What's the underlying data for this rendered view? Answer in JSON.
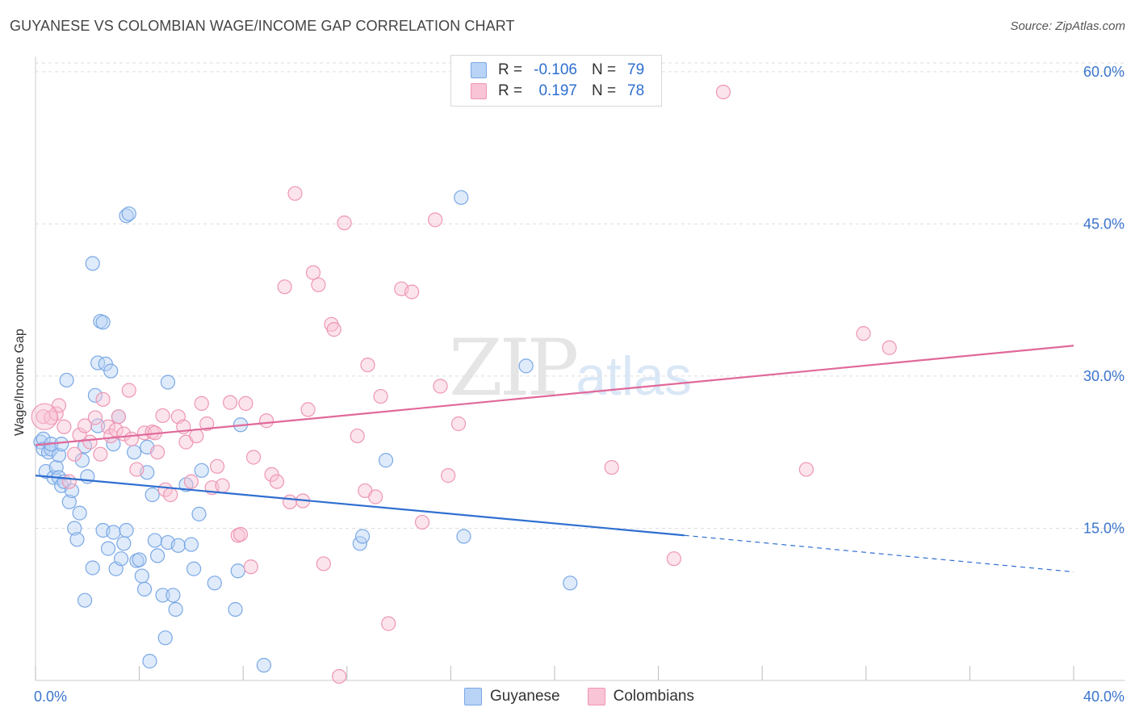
{
  "title": "GUYANESE VS COLOMBIAN WAGE/INCOME GAP CORRELATION CHART",
  "source": "Source: ZipAtlas.com",
  "watermark": {
    "zip": "ZIP",
    "atlas": "atlas"
  },
  "legend": {
    "rows": [
      {
        "r_label": "R =",
        "r_value": "-0.106",
        "n_label": "N =",
        "n_value": "79"
      },
      {
        "r_label": "R =",
        "r_value": "0.197",
        "n_label": "N =",
        "n_value": "78"
      }
    ]
  },
  "bottom_legend": [
    "Guyanese",
    "Colombians"
  ],
  "colors": {
    "blue_fill": "#b8d3f5",
    "blue_stroke": "#7aa8e6",
    "blue_line": "#2f6fd0",
    "pink_fill": "#f9c4d5",
    "pink_stroke": "#ee96b3",
    "pink_line": "#e0699a",
    "tick_label": "#3b74cc",
    "grid": "#dddddd"
  },
  "chart_data": {
    "type": "scatter",
    "title": "GUYANESE VS COLOMBIAN WAGE/INCOME GAP CORRELATION CHART",
    "xlabel": "",
    "ylabel": "Wage/Income Gap",
    "xlim": [
      0,
      40
    ],
    "ylim": [
      0,
      61.5
    ],
    "x_tick_labels": [
      "0.0%",
      "40.0%"
    ],
    "y_ticks": [
      15,
      30,
      45,
      60
    ],
    "y_tick_labels": [
      "15.0%",
      "30.0%",
      "45.0%",
      "60.0%"
    ],
    "series": [
      {
        "name": "Guyanese",
        "R": -0.106,
        "N": 79,
        "trend": {
          "x0": 0,
          "y0": 20.2,
          "x1": 25,
          "y1": 14.3,
          "dashed_to_x": 40,
          "dashed_to_y": 10.7
        },
        "points": [
          [
            0.2,
            23.5
          ],
          [
            0.3,
            23.8
          ],
          [
            0.3,
            22.8
          ],
          [
            0.4,
            20.6
          ],
          [
            0.5,
            22.5
          ],
          [
            0.6,
            22.8
          ],
          [
            0.6,
            23.3
          ],
          [
            0.7,
            20.0
          ],
          [
            0.8,
            21.0
          ],
          [
            0.9,
            20.0
          ],
          [
            0.9,
            22.2
          ],
          [
            1.0,
            23.3
          ],
          [
            1.0,
            19.2
          ],
          [
            1.1,
            19.6
          ],
          [
            1.2,
            29.6
          ],
          [
            1.3,
            17.6
          ],
          [
            1.4,
            18.7
          ],
          [
            1.5,
            15.0
          ],
          [
            1.6,
            13.9
          ],
          [
            1.7,
            16.5
          ],
          [
            1.8,
            21.7
          ],
          [
            1.9,
            23.1
          ],
          [
            1.9,
            7.9
          ],
          [
            2.0,
            20.1
          ],
          [
            2.2,
            11.1
          ],
          [
            2.2,
            41.1
          ],
          [
            2.3,
            28.1
          ],
          [
            2.4,
            25.1
          ],
          [
            2.4,
            31.3
          ],
          [
            2.5,
            35.4
          ],
          [
            2.6,
            35.3
          ],
          [
            2.6,
            14.8
          ],
          [
            2.7,
            31.2
          ],
          [
            2.8,
            13.0
          ],
          [
            2.9,
            30.5
          ],
          [
            3.0,
            14.6
          ],
          [
            3.0,
            23.3
          ],
          [
            3.1,
            11.0
          ],
          [
            3.2,
            26.0
          ],
          [
            3.3,
            12.0
          ],
          [
            3.4,
            13.5
          ],
          [
            3.5,
            14.8
          ],
          [
            3.5,
            45.8
          ],
          [
            3.6,
            46.0
          ],
          [
            3.8,
            22.5
          ],
          [
            3.9,
            11.8
          ],
          [
            4.0,
            11.9
          ],
          [
            4.1,
            10.3
          ],
          [
            4.2,
            9.0
          ],
          [
            4.3,
            23.0
          ],
          [
            4.3,
            20.5
          ],
          [
            4.4,
            1.9
          ],
          [
            4.5,
            18.3
          ],
          [
            4.6,
            13.8
          ],
          [
            4.7,
            12.3
          ],
          [
            4.9,
            8.4
          ],
          [
            5.0,
            4.2
          ],
          [
            5.1,
            13.6
          ],
          [
            5.1,
            29.4
          ],
          [
            5.3,
            8.4
          ],
          [
            5.4,
            7.0
          ],
          [
            5.5,
            13.3
          ],
          [
            5.8,
            19.3
          ],
          [
            6.0,
            13.4
          ],
          [
            6.1,
            11.0
          ],
          [
            6.3,
            16.4
          ],
          [
            6.4,
            20.7
          ],
          [
            6.9,
            9.6
          ],
          [
            7.7,
            7.0
          ],
          [
            7.8,
            10.8
          ],
          [
            7.9,
            25.2
          ],
          [
            8.8,
            1.5
          ],
          [
            12.5,
            13.5
          ],
          [
            12.6,
            14.2
          ],
          [
            13.5,
            21.7
          ],
          [
            16.4,
            47.6
          ],
          [
            16.5,
            14.2
          ],
          [
            18.9,
            31.0
          ],
          [
            20.6,
            9.6
          ]
        ]
      },
      {
        "name": "Colombians",
        "R": 0.197,
        "N": 78,
        "trend": {
          "x0": 0,
          "y0": 23.2,
          "x1": 40,
          "y1": 33.0
        },
        "points": [
          [
            0.3,
            26.0
          ],
          [
            0.6,
            25.9
          ],
          [
            0.8,
            26.3
          ],
          [
            0.9,
            27.1
          ],
          [
            1.1,
            25.0
          ],
          [
            1.3,
            19.6
          ],
          [
            1.5,
            22.3
          ],
          [
            1.7,
            24.2
          ],
          [
            1.9,
            25.1
          ],
          [
            2.1,
            23.5
          ],
          [
            2.3,
            25.9
          ],
          [
            2.5,
            22.3
          ],
          [
            2.6,
            27.7
          ],
          [
            2.8,
            25.0
          ],
          [
            2.9,
            24.1
          ],
          [
            3.1,
            24.7
          ],
          [
            3.2,
            26.0
          ],
          [
            3.4,
            24.3
          ],
          [
            3.6,
            28.6
          ],
          [
            3.7,
            23.8
          ],
          [
            3.9,
            20.8
          ],
          [
            4.2,
            24.4
          ],
          [
            4.5,
            24.5
          ],
          [
            4.6,
            24.4
          ],
          [
            4.7,
            22.5
          ],
          [
            4.9,
            26.1
          ],
          [
            5.0,
            18.8
          ],
          [
            5.2,
            18.3
          ],
          [
            5.5,
            26.0
          ],
          [
            5.7,
            25.0
          ],
          [
            5.8,
            23.5
          ],
          [
            6.0,
            19.6
          ],
          [
            6.2,
            24.1
          ],
          [
            6.4,
            27.3
          ],
          [
            6.6,
            25.3
          ],
          [
            6.8,
            19.0
          ],
          [
            7.0,
            21.1
          ],
          [
            7.2,
            19.2
          ],
          [
            7.5,
            27.4
          ],
          [
            7.8,
            14.3
          ],
          [
            7.9,
            14.4
          ],
          [
            8.1,
            27.3
          ],
          [
            8.3,
            11.2
          ],
          [
            8.4,
            22.0
          ],
          [
            8.9,
            25.6
          ],
          [
            9.1,
            20.3
          ],
          [
            9.3,
            19.6
          ],
          [
            9.6,
            38.8
          ],
          [
            9.8,
            17.6
          ],
          [
            10.0,
            48.0
          ],
          [
            10.3,
            17.7
          ],
          [
            10.5,
            26.7
          ],
          [
            10.7,
            40.2
          ],
          [
            10.9,
            39.0
          ],
          [
            11.1,
            11.5
          ],
          [
            11.4,
            35.1
          ],
          [
            11.5,
            34.6
          ],
          [
            11.7,
            0.4
          ],
          [
            11.9,
            45.1
          ],
          [
            12.4,
            24.1
          ],
          [
            12.7,
            18.7
          ],
          [
            12.8,
            31.1
          ],
          [
            13.1,
            18.1
          ],
          [
            13.3,
            28.0
          ],
          [
            13.6,
            5.6
          ],
          [
            14.1,
            38.6
          ],
          [
            14.5,
            38.3
          ],
          [
            14.9,
            15.6
          ],
          [
            15.4,
            45.4
          ],
          [
            15.6,
            29.0
          ],
          [
            15.9,
            20.2
          ],
          [
            16.3,
            25.3
          ],
          [
            22.2,
            21.0
          ],
          [
            24.6,
            12.0
          ],
          [
            26.5,
            58.0
          ],
          [
            29.7,
            20.8
          ],
          [
            31.9,
            34.2
          ],
          [
            32.9,
            32.8
          ]
        ]
      }
    ]
  }
}
